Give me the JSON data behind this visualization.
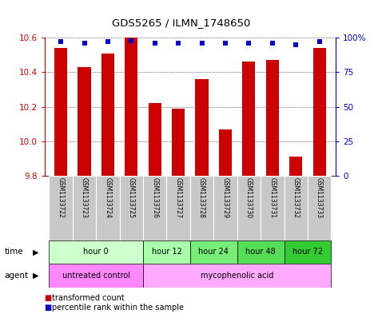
{
  "title": "GDS5265 / ILMN_1748650",
  "samples": [
    "GSM1133722",
    "GSM1133723",
    "GSM1133724",
    "GSM1133725",
    "GSM1133726",
    "GSM1133727",
    "GSM1133728",
    "GSM1133729",
    "GSM1133730",
    "GSM1133731",
    "GSM1133732",
    "GSM1133733"
  ],
  "bar_values": [
    10.54,
    10.43,
    10.51,
    10.6,
    10.22,
    10.19,
    10.36,
    10.07,
    10.46,
    10.47,
    9.91,
    10.54
  ],
  "percentile_values": [
    97,
    96,
    97,
    98,
    96,
    96,
    96,
    96,
    96,
    96,
    95,
    97
  ],
  "bar_color": "#cc0000",
  "percentile_color": "#0000cc",
  "y_min": 9.8,
  "y_max": 10.6,
  "y_ticks": [
    9.8,
    10.0,
    10.2,
    10.4,
    10.6
  ],
  "right_y_ticks": [
    0,
    25,
    50,
    75,
    100
  ],
  "right_y_labels": [
    "0",
    "25",
    "50",
    "75",
    "100%"
  ],
  "time_groups": [
    {
      "label": "hour 0",
      "start": 0,
      "end": 3,
      "color": "#ccffcc"
    },
    {
      "label": "hour 12",
      "start": 4,
      "end": 5,
      "color": "#aaffaa"
    },
    {
      "label": "hour 24",
      "start": 6,
      "end": 7,
      "color": "#77ee77"
    },
    {
      "label": "hour 48",
      "start": 8,
      "end": 9,
      "color": "#55dd55"
    },
    {
      "label": "hour 72",
      "start": 10,
      "end": 11,
      "color": "#33cc33"
    }
  ],
  "agent_groups": [
    {
      "label": "untreated control",
      "start": 0,
      "end": 3,
      "color": "#ff88ff"
    },
    {
      "label": "mycophenolic acid",
      "start": 4,
      "end": 11,
      "color": "#ffaaff"
    }
  ],
  "legend_items": [
    {
      "label": "transformed count",
      "color": "#cc0000"
    },
    {
      "label": "percentile rank within the sample",
      "color": "#0000cc"
    }
  ],
  "sample_box_color": "#c8c8c8",
  "bar_width": 0.55
}
